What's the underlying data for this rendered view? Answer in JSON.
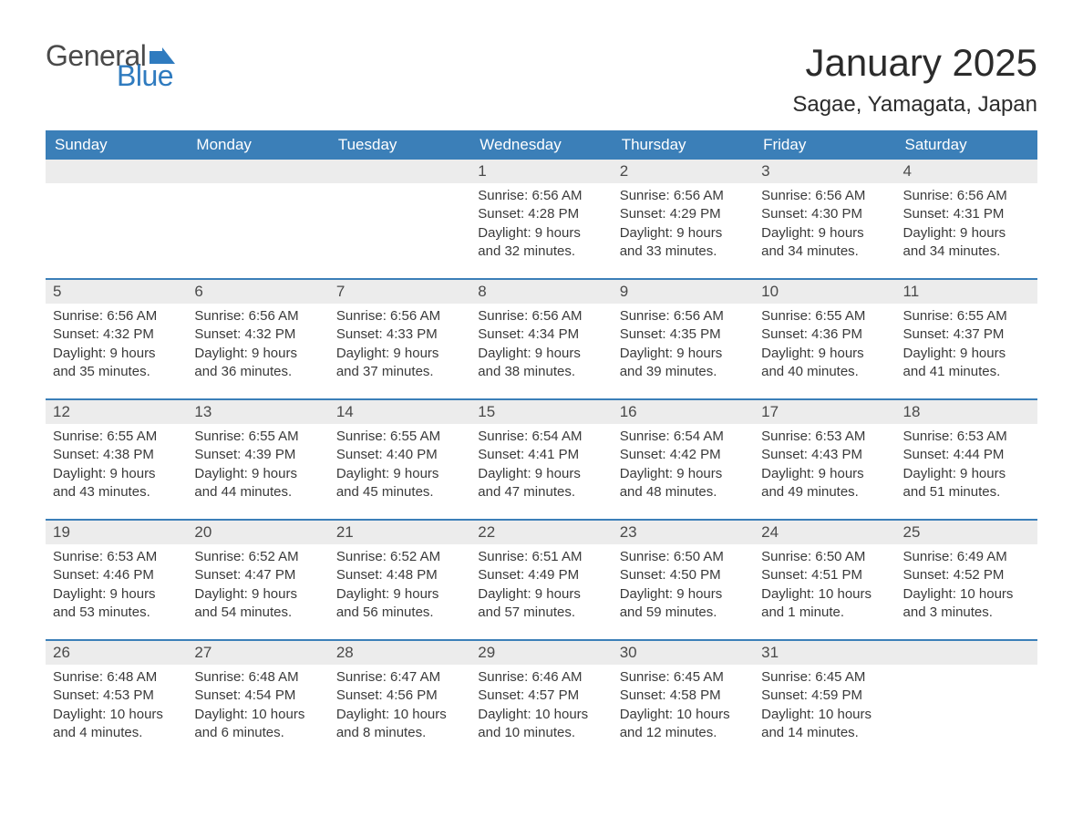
{
  "logo": {
    "text1": "General",
    "text2": "Blue",
    "flag_color": "#2f7bbf"
  },
  "title": "January 2025",
  "location": "Sagae, Yamagata, Japan",
  "colors": {
    "header_bg": "#3b7fb8",
    "header_text": "#ffffff",
    "daynum_bg": "#ececec",
    "week_border": "#3b7fb8",
    "body_text": "#3a3a3a",
    "title_text": "#2b2b2b"
  },
  "day_headers": [
    "Sunday",
    "Monday",
    "Tuesday",
    "Wednesday",
    "Thursday",
    "Friday",
    "Saturday"
  ],
  "weeks": [
    [
      null,
      null,
      null,
      {
        "n": "1",
        "sunrise": "Sunrise: 6:56 AM",
        "sunset": "Sunset: 4:28 PM",
        "dl1": "Daylight: 9 hours",
        "dl2": "and 32 minutes."
      },
      {
        "n": "2",
        "sunrise": "Sunrise: 6:56 AM",
        "sunset": "Sunset: 4:29 PM",
        "dl1": "Daylight: 9 hours",
        "dl2": "and 33 minutes."
      },
      {
        "n": "3",
        "sunrise": "Sunrise: 6:56 AM",
        "sunset": "Sunset: 4:30 PM",
        "dl1": "Daylight: 9 hours",
        "dl2": "and 34 minutes."
      },
      {
        "n": "4",
        "sunrise": "Sunrise: 6:56 AM",
        "sunset": "Sunset: 4:31 PM",
        "dl1": "Daylight: 9 hours",
        "dl2": "and 34 minutes."
      }
    ],
    [
      {
        "n": "5",
        "sunrise": "Sunrise: 6:56 AM",
        "sunset": "Sunset: 4:32 PM",
        "dl1": "Daylight: 9 hours",
        "dl2": "and 35 minutes."
      },
      {
        "n": "6",
        "sunrise": "Sunrise: 6:56 AM",
        "sunset": "Sunset: 4:32 PM",
        "dl1": "Daylight: 9 hours",
        "dl2": "and 36 minutes."
      },
      {
        "n": "7",
        "sunrise": "Sunrise: 6:56 AM",
        "sunset": "Sunset: 4:33 PM",
        "dl1": "Daylight: 9 hours",
        "dl2": "and 37 minutes."
      },
      {
        "n": "8",
        "sunrise": "Sunrise: 6:56 AM",
        "sunset": "Sunset: 4:34 PM",
        "dl1": "Daylight: 9 hours",
        "dl2": "and 38 minutes."
      },
      {
        "n": "9",
        "sunrise": "Sunrise: 6:56 AM",
        "sunset": "Sunset: 4:35 PM",
        "dl1": "Daylight: 9 hours",
        "dl2": "and 39 minutes."
      },
      {
        "n": "10",
        "sunrise": "Sunrise: 6:55 AM",
        "sunset": "Sunset: 4:36 PM",
        "dl1": "Daylight: 9 hours",
        "dl2": "and 40 minutes."
      },
      {
        "n": "11",
        "sunrise": "Sunrise: 6:55 AM",
        "sunset": "Sunset: 4:37 PM",
        "dl1": "Daylight: 9 hours",
        "dl2": "and 41 minutes."
      }
    ],
    [
      {
        "n": "12",
        "sunrise": "Sunrise: 6:55 AM",
        "sunset": "Sunset: 4:38 PM",
        "dl1": "Daylight: 9 hours",
        "dl2": "and 43 minutes."
      },
      {
        "n": "13",
        "sunrise": "Sunrise: 6:55 AM",
        "sunset": "Sunset: 4:39 PM",
        "dl1": "Daylight: 9 hours",
        "dl2": "and 44 minutes."
      },
      {
        "n": "14",
        "sunrise": "Sunrise: 6:55 AM",
        "sunset": "Sunset: 4:40 PM",
        "dl1": "Daylight: 9 hours",
        "dl2": "and 45 minutes."
      },
      {
        "n": "15",
        "sunrise": "Sunrise: 6:54 AM",
        "sunset": "Sunset: 4:41 PM",
        "dl1": "Daylight: 9 hours",
        "dl2": "and 47 minutes."
      },
      {
        "n": "16",
        "sunrise": "Sunrise: 6:54 AM",
        "sunset": "Sunset: 4:42 PM",
        "dl1": "Daylight: 9 hours",
        "dl2": "and 48 minutes."
      },
      {
        "n": "17",
        "sunrise": "Sunrise: 6:53 AM",
        "sunset": "Sunset: 4:43 PM",
        "dl1": "Daylight: 9 hours",
        "dl2": "and 49 minutes."
      },
      {
        "n": "18",
        "sunrise": "Sunrise: 6:53 AM",
        "sunset": "Sunset: 4:44 PM",
        "dl1": "Daylight: 9 hours",
        "dl2": "and 51 minutes."
      }
    ],
    [
      {
        "n": "19",
        "sunrise": "Sunrise: 6:53 AM",
        "sunset": "Sunset: 4:46 PM",
        "dl1": "Daylight: 9 hours",
        "dl2": "and 53 minutes."
      },
      {
        "n": "20",
        "sunrise": "Sunrise: 6:52 AM",
        "sunset": "Sunset: 4:47 PM",
        "dl1": "Daylight: 9 hours",
        "dl2": "and 54 minutes."
      },
      {
        "n": "21",
        "sunrise": "Sunrise: 6:52 AM",
        "sunset": "Sunset: 4:48 PM",
        "dl1": "Daylight: 9 hours",
        "dl2": "and 56 minutes."
      },
      {
        "n": "22",
        "sunrise": "Sunrise: 6:51 AM",
        "sunset": "Sunset: 4:49 PM",
        "dl1": "Daylight: 9 hours",
        "dl2": "and 57 minutes."
      },
      {
        "n": "23",
        "sunrise": "Sunrise: 6:50 AM",
        "sunset": "Sunset: 4:50 PM",
        "dl1": "Daylight: 9 hours",
        "dl2": "and 59 minutes."
      },
      {
        "n": "24",
        "sunrise": "Sunrise: 6:50 AM",
        "sunset": "Sunset: 4:51 PM",
        "dl1": "Daylight: 10 hours",
        "dl2": "and 1 minute."
      },
      {
        "n": "25",
        "sunrise": "Sunrise: 6:49 AM",
        "sunset": "Sunset: 4:52 PM",
        "dl1": "Daylight: 10 hours",
        "dl2": "and 3 minutes."
      }
    ],
    [
      {
        "n": "26",
        "sunrise": "Sunrise: 6:48 AM",
        "sunset": "Sunset: 4:53 PM",
        "dl1": "Daylight: 10 hours",
        "dl2": "and 4 minutes."
      },
      {
        "n": "27",
        "sunrise": "Sunrise: 6:48 AM",
        "sunset": "Sunset: 4:54 PM",
        "dl1": "Daylight: 10 hours",
        "dl2": "and 6 minutes."
      },
      {
        "n": "28",
        "sunrise": "Sunrise: 6:47 AM",
        "sunset": "Sunset: 4:56 PM",
        "dl1": "Daylight: 10 hours",
        "dl2": "and 8 minutes."
      },
      {
        "n": "29",
        "sunrise": "Sunrise: 6:46 AM",
        "sunset": "Sunset: 4:57 PM",
        "dl1": "Daylight: 10 hours",
        "dl2": "and 10 minutes."
      },
      {
        "n": "30",
        "sunrise": "Sunrise: 6:45 AM",
        "sunset": "Sunset: 4:58 PM",
        "dl1": "Daylight: 10 hours",
        "dl2": "and 12 minutes."
      },
      {
        "n": "31",
        "sunrise": "Sunrise: 6:45 AM",
        "sunset": "Sunset: 4:59 PM",
        "dl1": "Daylight: 10 hours",
        "dl2": "and 14 minutes."
      },
      null
    ]
  ]
}
